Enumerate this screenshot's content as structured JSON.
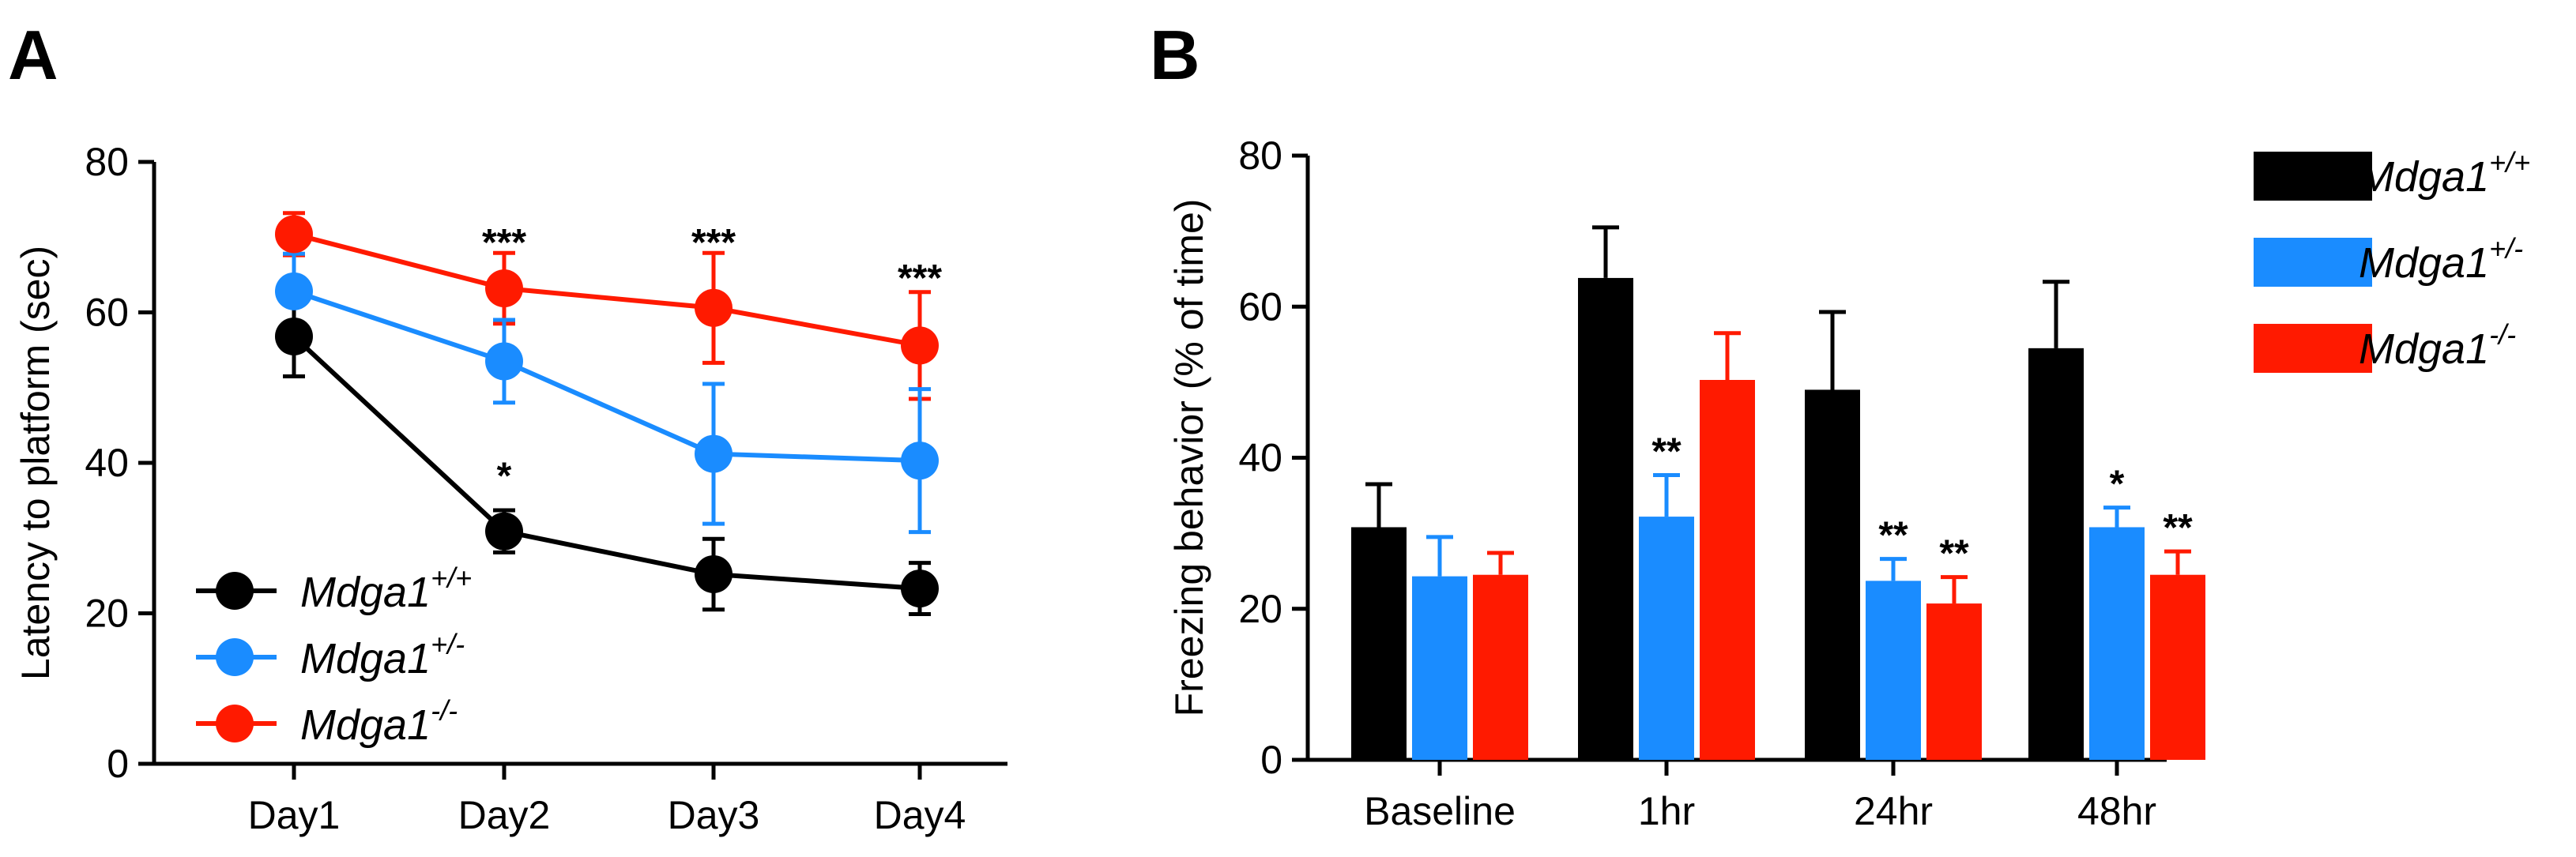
{
  "figure": {
    "panels": [
      "A",
      "B"
    ]
  },
  "colors": {
    "wt": "#000000",
    "het": "#1a8cff",
    "ko": "#ff1a00"
  },
  "chart_data": [
    {
      "panel": "A",
      "type": "line",
      "title": "",
      "xlabel": "",
      "ylabel": "Latency to platform (sec)",
      "ylim": [
        0,
        80
      ],
      "yticks": [
        "0",
        "20",
        "40",
        "60",
        "80"
      ],
      "categories": [
        "Day1",
        "Day2",
        "Day3",
        "Day4"
      ],
      "legend_position": "bottom-left",
      "series": [
        {
          "name": "Mdga1",
          "sup": "+/+",
          "color_key": "wt",
          "values": [
            56.8,
            30.9,
            25.2,
            23.3
          ],
          "errors": [
            5.3,
            2.8,
            4.7,
            3.4
          ]
        },
        {
          "name": "Mdga1",
          "sup": "+/-",
          "color_key": "het",
          "values": [
            62.8,
            53.5,
            41.2,
            40.3
          ],
          "errors": [
            5.0,
            5.5,
            9.3,
            9.5
          ]
        },
        {
          "name": "Mdga1",
          "sup": "-/-",
          "color_key": "ko",
          "values": [
            70.4,
            63.2,
            60.6,
            55.6
          ],
          "errors": [
            2.8,
            4.7,
            7.3,
            7.1
          ]
        }
      ],
      "annotations": [
        {
          "category": "Day2",
          "text": "***",
          "y": 69.5
        },
        {
          "category": "Day3",
          "text": "***",
          "y": 69.5
        },
        {
          "category": "Day4",
          "text": "***",
          "y": 64.8
        },
        {
          "category": "Day2",
          "text": "*",
          "y": 38.5
        }
      ]
    },
    {
      "panel": "B",
      "type": "bar",
      "title": "",
      "xlabel": "",
      "ylabel": "Freezing behavior (% of time)",
      "ylim": [
        0,
        80
      ],
      "yticks": [
        "0",
        "20",
        "40",
        "60",
        "80"
      ],
      "categories": [
        "Baseline",
        "1hr",
        "24hr",
        "48hr"
      ],
      "legend_position": "right",
      "series": [
        {
          "name": "Mdga1",
          "sup": "+/+",
          "color_key": "wt",
          "values": [
            30.8,
            63.8,
            49.0,
            54.5
          ],
          "errors": [
            5.7,
            6.7,
            10.3,
            8.8
          ]
        },
        {
          "name": "Mdga1",
          "sup": "+/-",
          "color_key": "het",
          "values": [
            24.3,
            32.2,
            23.7,
            30.8
          ],
          "errors": [
            5.2,
            5.5,
            2.9,
            2.6
          ]
        },
        {
          "name": "Mdga1",
          "sup": "-/-",
          "color_key": "ko",
          "values": [
            24.5,
            50.3,
            20.7,
            24.5
          ],
          "errors": [
            2.9,
            6.2,
            3.5,
            3.1
          ]
        }
      ],
      "annotations": [
        {
          "category": "1hr",
          "series": 1,
          "text": "**"
        },
        {
          "category": "24hr",
          "series": 1,
          "text": "**"
        },
        {
          "category": "24hr",
          "series": 2,
          "text": "**"
        },
        {
          "category": "48hr",
          "series": 1,
          "text": "*"
        },
        {
          "category": "48hr",
          "series": 2,
          "text": "**"
        }
      ]
    }
  ]
}
